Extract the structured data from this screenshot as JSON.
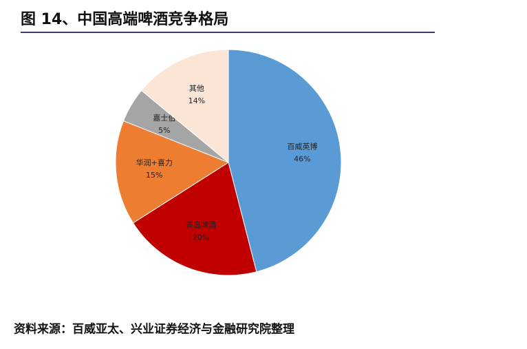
{
  "chart_data": {
    "type": "pie",
    "title": "图 14、中国高端啤酒竞争格局",
    "categories": [
      "百威英博",
      "青岛啤酒",
      "华润+喜力",
      "嘉士伯",
      "其他"
    ],
    "values": [
      46,
      20,
      15,
      5,
      14
    ],
    "value_labels": [
      "46%",
      "20%",
      "15%",
      "5%",
      "14%"
    ],
    "colors": [
      "#5b9bd5",
      "#c00000",
      "#ed7d31",
      "#a5a5a5",
      "#fbe5d6"
    ],
    "source": "资料来源：百威亚太、兴业证券经济与金融研究院整理"
  }
}
